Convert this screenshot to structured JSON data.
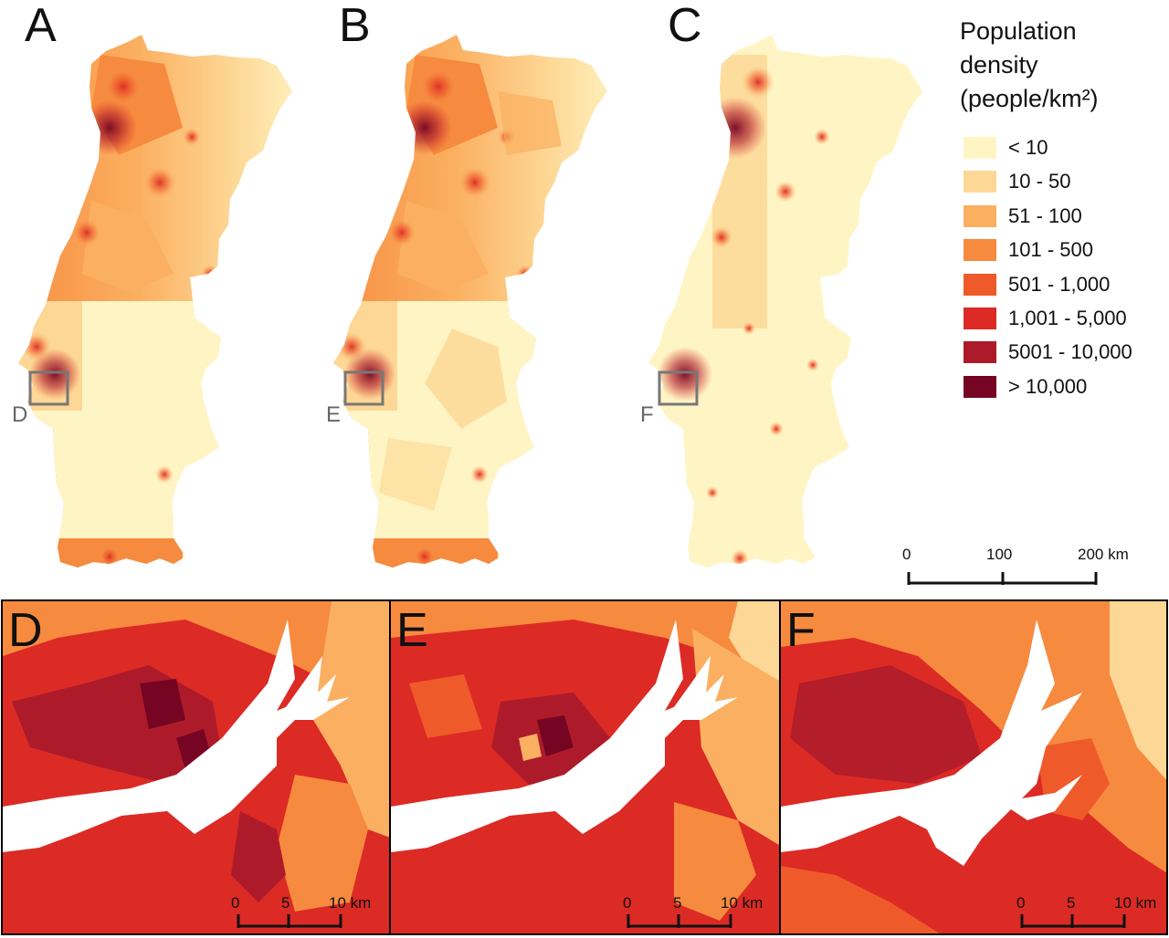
{
  "panels": [
    {
      "letter": "A",
      "box_label": "D"
    },
    {
      "letter": "B",
      "box_label": "E"
    },
    {
      "letter": "C",
      "box_label": "F"
    }
  ],
  "legend": {
    "title_lines": [
      "Population",
      "density",
      "(people/km²)"
    ],
    "classes": [
      {
        "label": "< 10",
        "color": "#fff5c4"
      },
      {
        "label": "10 - 50",
        "color": "#fdd795"
      },
      {
        "label": "51 - 100",
        "color": "#fbb061"
      },
      {
        "label": "101 - 500",
        "color": "#f68a3f"
      },
      {
        "label": "501 - 1,000",
        "color": "#ef5a2b"
      },
      {
        "label": "1,001 - 5,000",
        "color": "#dc2a25"
      },
      {
        "label": "5001 - 10,000",
        "color": "#ad1b2b"
      },
      {
        "label": "> 10,000",
        "color": "#760423"
      }
    ]
  },
  "main_scale": {
    "ticks": [
      "0",
      "100",
      "200 km"
    ]
  },
  "insets": [
    {
      "letter": "D",
      "scale_ticks": [
        "0",
        "5",
        "10 km"
      ]
    },
    {
      "letter": "E",
      "scale_ticks": [
        "0",
        "5",
        "10 km"
      ]
    },
    {
      "letter": "F",
      "scale_ticks": [
        "0",
        "5",
        "10 km"
      ]
    }
  ],
  "colors": {
    "water": "#ffffff",
    "frame": "#000000",
    "locator_box": "#777777"
  }
}
